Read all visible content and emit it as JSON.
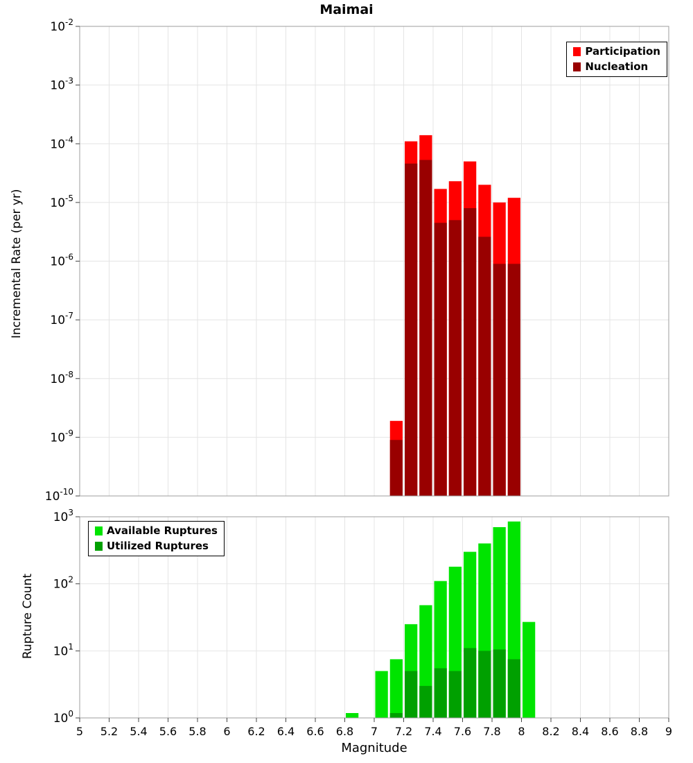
{
  "title": "Maimai",
  "axes": {
    "xlabel": "Magnitude",
    "x_min": 5,
    "x_max": 9,
    "x_tick_values": [
      5,
      5.2,
      5.4,
      5.6,
      5.8,
      6,
      6.2,
      6.4,
      6.6,
      6.8,
      7,
      7.2,
      7.4,
      7.6,
      7.8,
      8,
      8.2,
      8.4,
      8.6,
      8.8,
      9
    ],
    "x_tick_labels": [
      "5",
      "5.2",
      "5.4",
      "5.6",
      "5.8",
      "6",
      "6.2",
      "6.4",
      "6.6",
      "6.8",
      "7",
      "7.2",
      "7.4",
      "7.6",
      "7.8",
      "8",
      "8.2",
      "8.4",
      "8.6",
      "8.8",
      "9"
    ]
  },
  "chart_data": [
    {
      "type": "bar",
      "title": "Maimai",
      "ylabel": "Incremental Rate (per yr)",
      "xlabel": "Magnitude",
      "y_scale": "log",
      "ylim": [
        1e-10,
        0.01
      ],
      "y_tick_exponents": [
        -2,
        -3,
        -4,
        -5,
        -6,
        -7,
        -8,
        -9,
        -10
      ],
      "bin_width": 0.1,
      "bins": [
        7.1,
        7.2,
        7.3,
        7.4,
        7.5,
        7.6,
        7.7,
        7.8,
        7.9
      ],
      "legend_position": "top-right",
      "grid": true,
      "series": [
        {
          "name": "Participation",
          "color": "#ff0000",
          "values": [
            1.9e-09,
            0.00011,
            0.00014,
            1.7e-05,
            2.3e-05,
            5e-05,
            2e-05,
            1e-05,
            1.2e-05
          ]
        },
        {
          "name": "Nucleation",
          "color": "#990000",
          "values": [
            9e-10,
            4.6e-05,
            5.3e-05,
            4.5e-06,
            5e-06,
            8e-06,
            2.6e-06,
            9e-07,
            9e-07
          ]
        }
      ]
    },
    {
      "type": "bar",
      "title": "",
      "ylabel": "Rupture Count",
      "xlabel": "Magnitude",
      "y_scale": "log",
      "ylim": [
        1,
        1000
      ],
      "y_tick_exponents": [
        3,
        2,
        1,
        0
      ],
      "bin_width": 0.1,
      "bins": [
        6.8,
        7.0,
        7.1,
        7.2,
        7.3,
        7.4,
        7.5,
        7.6,
        7.7,
        7.8,
        7.9,
        8.0
      ],
      "legend_position": "top-left",
      "grid": true,
      "series": [
        {
          "name": "Available Ruptures",
          "color": "#00e400",
          "values": [
            1,
            5,
            7.5,
            25,
            48,
            110,
            180,
            300,
            400,
            700,
            850,
            27
          ]
        },
        {
          "name": "Utilized Ruptures",
          "color": "#00a000",
          "values": [
            0,
            0,
            1,
            5,
            3,
            5.5,
            5,
            11,
            10,
            10.5,
            7.5,
            0
          ]
        }
      ]
    }
  ]
}
